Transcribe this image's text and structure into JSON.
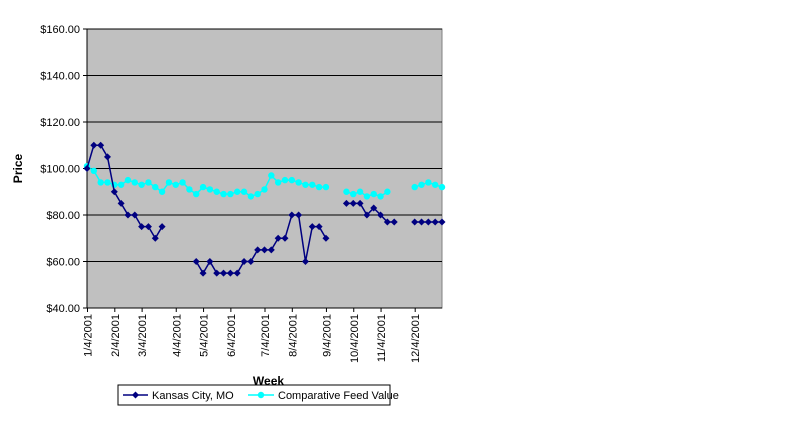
{
  "chart_data": {
    "type": "line",
    "xlabel": "Week",
    "ylabel": "Price",
    "ylim": [
      40,
      160
    ],
    "y_ticks": [
      "$40.00",
      "$60.00",
      "$80.00",
      "$100.00",
      "$120.00",
      "$140.00",
      "$160.00"
    ],
    "y_tick_values": [
      40,
      60,
      80,
      100,
      120,
      140,
      160
    ],
    "x_tick_labels": [
      "1/4/2001",
      "2/4/2001",
      "3/4/2001",
      "4/4/2001",
      "5/4/2001",
      "6/4/2001",
      "7/4/2001",
      "8/4/2001",
      "9/4/2001",
      "10/4/2001",
      "11/4/2001",
      "12/4/2001"
    ],
    "x_tick_weeks": [
      0,
      4,
      8,
      13,
      17,
      21,
      26,
      30,
      35,
      39,
      43,
      48
    ],
    "num_weeks": 52,
    "plot_background": "#c0c0c0",
    "grid": true,
    "legend_position": "bottom",
    "series": [
      {
        "name": "Kansas City, MO",
        "color": "#000080",
        "marker": "diamond",
        "values": [
          100,
          110,
          110,
          105,
          90,
          85,
          80,
          80,
          75,
          75,
          70,
          75,
          null,
          null,
          null,
          null,
          60,
          55,
          60,
          55,
          55,
          55,
          55,
          60,
          60,
          65,
          65,
          65,
          70,
          70,
          80,
          80,
          60,
          75,
          75,
          70,
          null,
          null,
          85,
          85,
          85,
          80,
          83,
          80,
          77,
          77,
          null,
          null,
          77,
          77,
          77,
          77,
          77
        ]
      },
      {
        "name": "Comparative Feed Value",
        "color": "#00ffff",
        "marker": "circle",
        "values": [
          101,
          99,
          94,
          94,
          93,
          93,
          95,
          94,
          93,
          94,
          92,
          90,
          94,
          93,
          94,
          91,
          89,
          92,
          91,
          90,
          89,
          89,
          90,
          90,
          88,
          89,
          91,
          97,
          94,
          95,
          95,
          94,
          93,
          93,
          92,
          92,
          null,
          null,
          90,
          89,
          90,
          88,
          89,
          88,
          90,
          null,
          null,
          null,
          92,
          93,
          94,
          93,
          92
        ]
      }
    ]
  }
}
